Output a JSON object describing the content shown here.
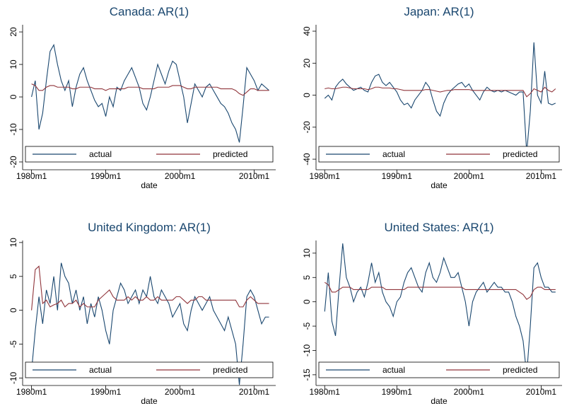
{
  "chart_data": [
    {
      "type": "line",
      "title": "Canada: AR(1)",
      "x_label": "date",
      "x": [
        1980,
        1980.5,
        1981,
        1981.5,
        1982,
        1982.5,
        1983,
        1983.5,
        1984,
        1984.5,
        1985,
        1985.5,
        1986,
        1986.5,
        1987,
        1987.5,
        1988,
        1988.5,
        1989,
        1989.5,
        1990,
        1990.5,
        1991,
        1991.5,
        1992,
        1992.5,
        1993,
        1993.5,
        1994,
        1994.5,
        1995,
        1995.5,
        1996,
        1996.5,
        1997,
        1997.5,
        1998,
        1998.5,
        1999,
        1999.5,
        2000,
        2000.5,
        2001,
        2001.5,
        2002,
        2002.5,
        2003,
        2003.5,
        2004,
        2004.5,
        2005,
        2005.5,
        2006,
        2006.5,
        2007,
        2007.5,
        2008,
        2008.5,
        2009,
        2009.5,
        2010,
        2010.5,
        2011,
        2011.5,
        2012
      ],
      "series": [
        {
          "name": "actual",
          "color": "#1a476f",
          "values": [
            0,
            5,
            -10,
            -5,
            5,
            14,
            16,
            10,
            5,
            2,
            5,
            -3,
            3,
            7,
            9,
            5,
            2,
            -1,
            -3,
            -2,
            -6,
            0,
            -3,
            3,
            2,
            5,
            7,
            9,
            6,
            3,
            -2,
            -4,
            0,
            5,
            10,
            7,
            4,
            8,
            11,
            10,
            5,
            0,
            -8,
            -2,
            4,
            2,
            0,
            3,
            4,
            2,
            0,
            -2,
            -3,
            -5,
            -8,
            -10,
            -14,
            -3,
            9,
            7,
            5,
            2,
            4,
            3,
            2
          ]
        },
        {
          "name": "predicted",
          "color": "#90353b",
          "values": [
            4,
            3.5,
            2,
            2,
            3,
            3.5,
            3.5,
            3,
            3,
            3,
            3,
            2.5,
            2.5,
            3,
            3,
            3,
            3,
            2.5,
            2.5,
            2.5,
            2,
            2.5,
            2.5,
            2.5,
            2.5,
            2.5,
            3,
            3,
            3,
            3,
            2.5,
            2.5,
            2.5,
            2.5,
            3,
            3,
            3,
            3,
            3.5,
            3.5,
            3.5,
            3,
            2.5,
            2.5,
            3,
            3,
            3,
            3,
            3,
            3,
            3,
            2.5,
            2.5,
            2.5,
            2.5,
            2,
            1,
            0.5,
            1.5,
            2.5,
            2.5,
            2,
            2,
            2,
            2
          ]
        }
      ],
      "xlim": [
        1978.8,
        2012.9
      ],
      "xticks": [
        {
          "value": 1980,
          "label": "1980m1"
        },
        {
          "value": 1990,
          "label": "1990m1"
        },
        {
          "value": 2000,
          "label": "2000m1"
        },
        {
          "value": 2010,
          "label": "2010m1"
        }
      ],
      "ylim": [
        -22.4,
        22.2
      ],
      "yticks": [
        -20,
        -10,
        0,
        10,
        20
      ],
      "grid": false,
      "legend": "bottom"
    },
    {
      "type": "line",
      "title": "Japan: AR(1)",
      "x_label": "date",
      "x": [
        1980,
        1980.5,
        1981,
        1981.5,
        1982,
        1982.5,
        1983,
        1983.5,
        1984,
        1984.5,
        1985,
        1985.5,
        1986,
        1986.5,
        1987,
        1987.5,
        1988,
        1988.5,
        1989,
        1989.5,
        1990,
        1990.5,
        1991,
        1991.5,
        1992,
        1992.5,
        1993,
        1993.5,
        1994,
        1994.5,
        1995,
        1995.5,
        1996,
        1996.5,
        1997,
        1997.5,
        1998,
        1998.5,
        1999,
        1999.5,
        2000,
        2000.5,
        2001,
        2001.5,
        2002,
        2002.5,
        2003,
        2003.5,
        2004,
        2004.5,
        2005,
        2005.5,
        2006,
        2006.5,
        2007,
        2007.5,
        2008,
        2008.5,
        2009,
        2009.5,
        2010,
        2010.5,
        2011,
        2011.5,
        2012
      ],
      "series": [
        {
          "name": "actual",
          "color": "#1a476f",
          "values": [
            -2,
            0,
            -3,
            5,
            8,
            10,
            7,
            5,
            3,
            4,
            5,
            3,
            2,
            8,
            12,
            13,
            8,
            6,
            8,
            5,
            2,
            -3,
            -6,
            -5,
            -8,
            -3,
            0,
            3,
            8,
            5,
            -3,
            -10,
            -13,
            -5,
            0,
            3,
            5,
            7,
            8,
            5,
            7,
            3,
            0,
            -3,
            2,
            5,
            3,
            2,
            3,
            2,
            3,
            2,
            1,
            0,
            2,
            2,
            -36,
            -10,
            33,
            0,
            -5,
            15,
            -5,
            -6,
            -5
          ]
        },
        {
          "name": "predicted",
          "color": "#90353b",
          "values": [
            4,
            4.5,
            4,
            4,
            4.5,
            5,
            5,
            4.5,
            4,
            4,
            4,
            4,
            3.5,
            4,
            5,
            5,
            4.5,
            4.5,
            4.5,
            4,
            4,
            3.5,
            3,
            3,
            3,
            3,
            3,
            3,
            3.5,
            3.5,
            3,
            2.5,
            2,
            2.5,
            3,
            3,
            3.5,
            3.5,
            3.5,
            3.5,
            3.5,
            3,
            3,
            3,
            3,
            3,
            3,
            3,
            3,
            3,
            3,
            3,
            3,
            3,
            3,
            3,
            -1,
            1,
            4,
            3,
            2,
            5,
            3,
            2,
            4
          ]
        }
      ],
      "xlim": [
        1978.8,
        2012.9
      ],
      "xticks": [
        {
          "value": 1980,
          "label": "1980m1"
        },
        {
          "value": 1990,
          "label": "1990m1"
        },
        {
          "value": 2000,
          "label": "2000m1"
        },
        {
          "value": 2010,
          "label": "2010m1"
        }
      ],
      "ylim": [
        -46.6,
        44
      ],
      "yticks": [
        -40,
        -20,
        0,
        20,
        40
      ],
      "grid": false,
      "legend": "bottom"
    },
    {
      "type": "line",
      "title": "United Kingdom: AR(1)",
      "x_label": "date",
      "x": [
        1980,
        1980.5,
        1981,
        1981.5,
        1982,
        1982.5,
        1983,
        1983.5,
        1984,
        1984.5,
        1985,
        1985.5,
        1986,
        1986.5,
        1987,
        1987.5,
        1988,
        1988.5,
        1989,
        1989.5,
        1990,
        1990.5,
        1991,
        1991.5,
        1992,
        1992.5,
        1993,
        1993.5,
        1994,
        1994.5,
        1995,
        1995.5,
        1996,
        1996.5,
        1997,
        1997.5,
        1998,
        1998.5,
        1999,
        1999.5,
        2000,
        2000.5,
        2001,
        2001.5,
        2002,
        2002.5,
        2003,
        2003.5,
        2004,
        2004.5,
        2005,
        2005.5,
        2006,
        2006.5,
        2007,
        2007.5,
        2008,
        2008.5,
        2009,
        2009.5,
        2010,
        2010.5,
        2011,
        2011.5,
        2012
      ],
      "series": [
        {
          "name": "actual",
          "color": "#1a476f",
          "values": [
            -9,
            -3,
            2,
            -2,
            3,
            1,
            5,
            0,
            7,
            5,
            4,
            1,
            3,
            0,
            2,
            -2,
            1,
            -1,
            2,
            0,
            -3,
            -5,
            0,
            2,
            4,
            3,
            1,
            2,
            3,
            1,
            3,
            2,
            5,
            2,
            1,
            3,
            2,
            1,
            -1,
            0,
            1,
            -2,
            -3,
            0,
            2,
            1,
            0,
            1,
            2,
            0,
            -1,
            -2,
            -3,
            -1,
            -3,
            -5,
            -11,
            -5,
            2,
            3,
            2,
            0,
            -2,
            -1,
            -1
          ]
        },
        {
          "name": "predicted",
          "color": "#90353b",
          "values": [
            0,
            6,
            6.5,
            1,
            1.5,
            0.5,
            0.8,
            1,
            1.5,
            0.5,
            1,
            1,
            1.5,
            0.5,
            1,
            0.5,
            0.5,
            0.5,
            1.5,
            2,
            2.5,
            3,
            2,
            1.5,
            1.5,
            1.5,
            2,
            1.5,
            2,
            1.5,
            1.5,
            2,
            1.5,
            1.5,
            2,
            1.5,
            1.5,
            1.5,
            1.5,
            2,
            2,
            1.5,
            1,
            1.5,
            1.5,
            2,
            2,
            1.5,
            1.5,
            1.5,
            1.5,
            1.5,
            1.5,
            1.5,
            1.5,
            1.5,
            0.5,
            0.5,
            1.5,
            2,
            1.5,
            1,
            1,
            1,
            1
          ]
        }
      ],
      "xlim": [
        1978.8,
        2012.9
      ],
      "xticks": [
        {
          "value": 1980,
          "label": "1980m1"
        },
        {
          "value": 1990,
          "label": "1990m1"
        },
        {
          "value": 2000,
          "label": "2000m1"
        },
        {
          "value": 2010,
          "label": "2010m1"
        }
      ],
      "ylim": [
        -11.1,
        10.3
      ],
      "yticks": [
        -10,
        -5,
        0,
        5,
        10
      ],
      "grid": false,
      "legend": "bottom"
    },
    {
      "type": "line",
      "title": "United States: AR(1)",
      "x_label": "date",
      "x": [
        1980,
        1980.5,
        1981,
        1981.5,
        1982,
        1982.5,
        1983,
        1983.5,
        1984,
        1984.5,
        1985,
        1985.5,
        1986,
        1986.5,
        1987,
        1987.5,
        1988,
        1988.5,
        1989,
        1989.5,
        1990,
        1990.5,
        1991,
        1991.5,
        1992,
        1992.5,
        1993,
        1993.5,
        1994,
        1994.5,
        1995,
        1995.5,
        1996,
        1996.5,
        1997,
        1997.5,
        1998,
        1998.5,
        1999,
        1999.5,
        2000,
        2000.5,
        2001,
        2001.5,
        2002,
        2002.5,
        2003,
        2003.5,
        2004,
        2004.5,
        2005,
        2005.5,
        2006,
        2006.5,
        2007,
        2007.5,
        2008,
        2008.5,
        2009,
        2009.5,
        2010,
        2010.5,
        2011,
        2011.5,
        2012
      ],
      "series": [
        {
          "name": "actual",
          "color": "#1a476f",
          "values": [
            -2,
            6,
            -4,
            -7,
            3,
            12,
            5,
            3,
            0,
            2,
            3,
            1,
            4,
            8,
            4,
            6,
            2,
            0,
            -1,
            -3,
            0,
            1,
            4,
            6,
            7,
            5,
            3,
            2,
            6,
            8,
            5,
            4,
            6,
            9,
            7,
            5,
            5,
            6,
            3,
            0,
            -5,
            0,
            2,
            3,
            4,
            2,
            3,
            4,
            3,
            3,
            2,
            2,
            0,
            -3,
            -5,
            -8,
            -15,
            -5,
            7,
            8,
            5,
            3,
            3,
            2,
            2
          ]
        },
        {
          "name": "predicted",
          "color": "#90353b",
          "values": [
            4,
            3.5,
            2,
            2,
            2.5,
            3,
            3,
            3,
            2.5,
            2.5,
            2.5,
            2.5,
            2.5,
            3,
            3,
            3,
            3,
            2.5,
            2.5,
            2.5,
            2.5,
            2.5,
            2.5,
            3,
            3,
            3,
            3,
            3,
            3,
            3,
            3,
            3,
            3,
            3,
            3,
            3,
            3,
            3,
            3,
            2.5,
            2.5,
            2.5,
            2.5,
            2.5,
            2.5,
            2.5,
            2.5,
            2.5,
            2.5,
            2.5,
            2.5,
            2.5,
            2.5,
            2.5,
            2,
            1.5,
            0.5,
            1,
            2.5,
            3,
            3,
            2.5,
            2.5,
            2.5,
            2.5
          ]
        }
      ],
      "xlim": [
        1978.8,
        2012.9
      ],
      "xticks": [
        {
          "value": 1980,
          "label": "1980m1"
        },
        {
          "value": 1990,
          "label": "1990m1"
        },
        {
          "value": 2000,
          "label": "2000m1"
        },
        {
          "value": 2010,
          "label": "2010m1"
        }
      ],
      "ylim": [
        -17.2,
        12.6
      ],
      "yticks": [
        -15,
        -10,
        -5,
        0,
        5,
        10
      ],
      "grid": false,
      "legend": "bottom"
    }
  ]
}
